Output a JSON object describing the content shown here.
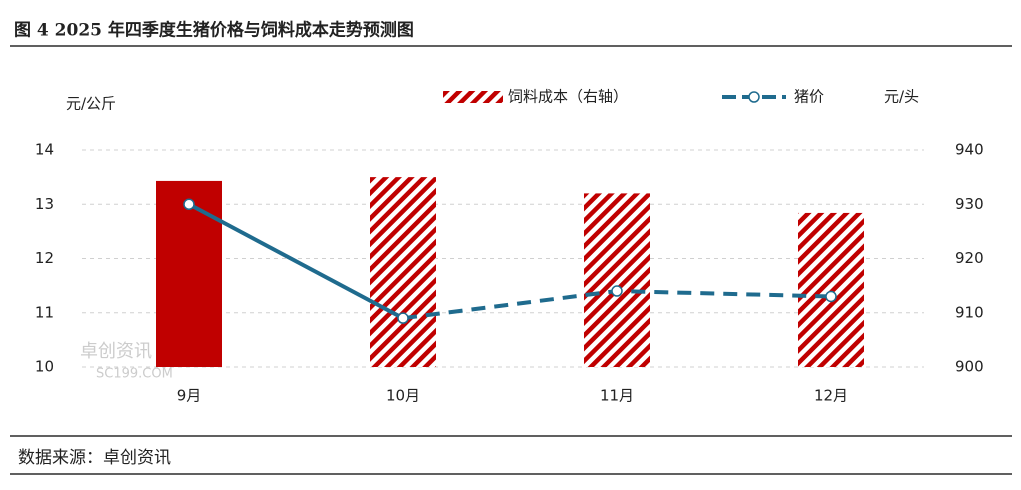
{
  "chart_data": {
    "type": "bar_line",
    "title": "图 4 2025 年四季度生猪价格与饲料成本走势预测图",
    "source": "数据来源：卓创资讯",
    "watermark": [
      "卓创资讯",
      "SC199.COM"
    ],
    "y_label": "元/公斤",
    "y2_label": "元/头",
    "categories": [
      "9月",
      "10月",
      "11月",
      "12月"
    ],
    "series": [
      {
        "name": "饲料成本（右轴）",
        "type": "bar",
        "axis": "y2",
        "color": "#c00000",
        "values": [
          934.3,
          935,
          932,
          928.4
        ],
        "hatched_from": 1
      },
      {
        "name": "猪价",
        "type": "line",
        "axis": "y",
        "color": "#1f6b8e",
        "values": [
          13,
          10.9,
          11.4,
          11.3
        ],
        "dashed_from": 1
      }
    ],
    "ylim": [
      10,
      14
    ],
    "yticks": [
      10,
      11,
      12,
      13,
      14
    ],
    "y2lim": [
      900,
      940
    ],
    "y2ticks": [
      900,
      910,
      920,
      930,
      940
    ],
    "grid": true
  }
}
